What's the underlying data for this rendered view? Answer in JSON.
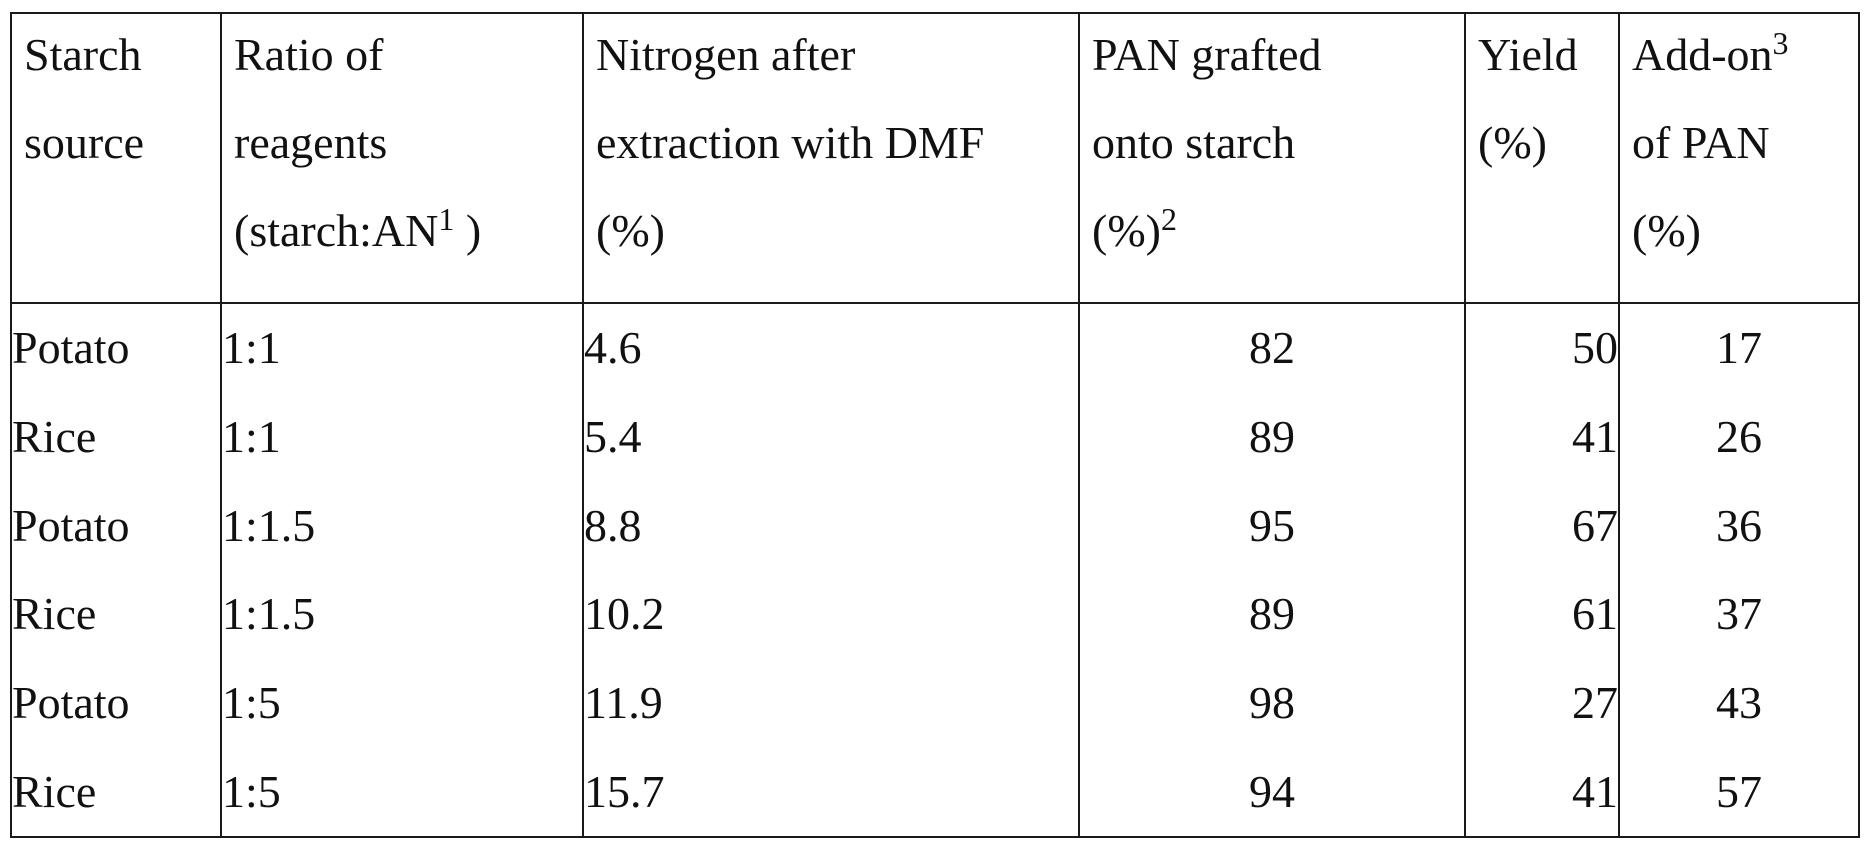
{
  "table": {
    "headers": [
      {
        "lines": [
          {
            "text": "Starch"
          },
          {
            "text": "source"
          }
        ]
      },
      {
        "lines": [
          {
            "text": "Ratio of"
          },
          {
            "text": "reagents"
          },
          {
            "text": "(starch:AN",
            "sup": "1",
            "after": " )"
          }
        ]
      },
      {
        "lines": [
          {
            "text": "Nitrogen after"
          },
          {
            "text": "extraction with DMF"
          },
          {
            "text": "(%)"
          }
        ]
      },
      {
        "lines": [
          {
            "text": "PAN grafted"
          },
          {
            "text": "onto starch"
          },
          {
            "text": "(%)",
            "sup": "2"
          }
        ]
      },
      {
        "lines": [
          {
            "text": "Yield"
          },
          {
            "text": "(%)"
          }
        ]
      },
      {
        "lines": [
          {
            "text": "Add-on",
            "sup": "3"
          },
          {
            "text": "of PAN"
          },
          {
            "text": "(%)"
          }
        ]
      }
    ],
    "rows": [
      [
        "Potato",
        "1:1",
        "4.6",
        "82",
        "50",
        "17"
      ],
      [
        "Rice",
        "1:1",
        "5.4",
        "89",
        "41",
        "26"
      ],
      [
        "Potato",
        "1:1.5",
        "8.8",
        "95",
        "67",
        "36"
      ],
      [
        "Rice",
        "1:1.5",
        "10.2",
        "89",
        "61",
        "37"
      ],
      [
        "Potato",
        "1:5",
        "11.9",
        "98",
        "27",
        "43"
      ],
      [
        "Rice",
        "1:5",
        "15.7",
        "94",
        "41",
        "57"
      ]
    ]
  }
}
